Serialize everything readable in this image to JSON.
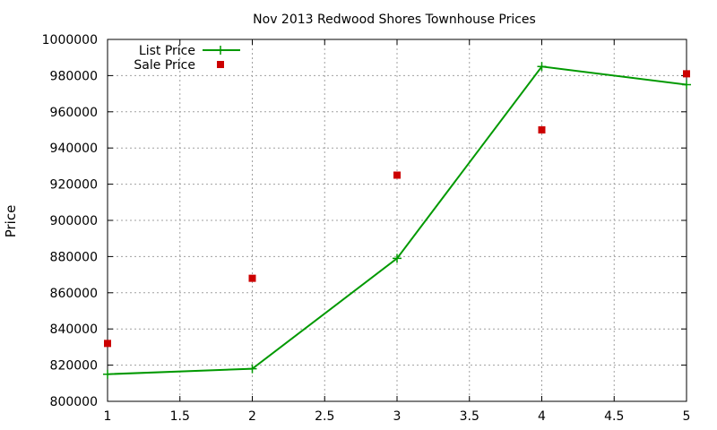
{
  "chart_data": {
    "type": "line",
    "title": "Nov 2013 Redwood Shores Townhouse Prices",
    "xlabel": "",
    "ylabel": "Price",
    "xlim": [
      1,
      5
    ],
    "ylim": [
      800000,
      1000000
    ],
    "x_ticks": [
      1,
      1.5,
      2,
      2.5,
      3,
      3.5,
      4,
      4.5,
      5
    ],
    "x_tick_labels": [
      "1",
      "1.5",
      "2",
      "2.5",
      "3",
      "3.5",
      "4",
      "4.5",
      "5"
    ],
    "y_ticks": [
      800000,
      820000,
      840000,
      860000,
      880000,
      900000,
      920000,
      940000,
      960000,
      980000,
      1000000
    ],
    "y_tick_labels": [
      "800000",
      "820000",
      "840000",
      "860000",
      "880000",
      "900000",
      "920000",
      "940000",
      "960000",
      "980000",
      "1000000"
    ],
    "grid": true,
    "legend_position": "top-left",
    "series": [
      {
        "name": "List Price",
        "style": "linespoints",
        "color": "#009900",
        "marker": "plus",
        "x": [
          1,
          2,
          3,
          4,
          5
        ],
        "y": [
          815000,
          818000,
          879000,
          985000,
          975000
        ]
      },
      {
        "name": "Sale Price",
        "style": "points",
        "color": "#cc0000",
        "marker": "square",
        "x": [
          1,
          2,
          3,
          4,
          5
        ],
        "y": [
          832000,
          868000,
          925000,
          950000,
          981000
        ]
      }
    ]
  }
}
